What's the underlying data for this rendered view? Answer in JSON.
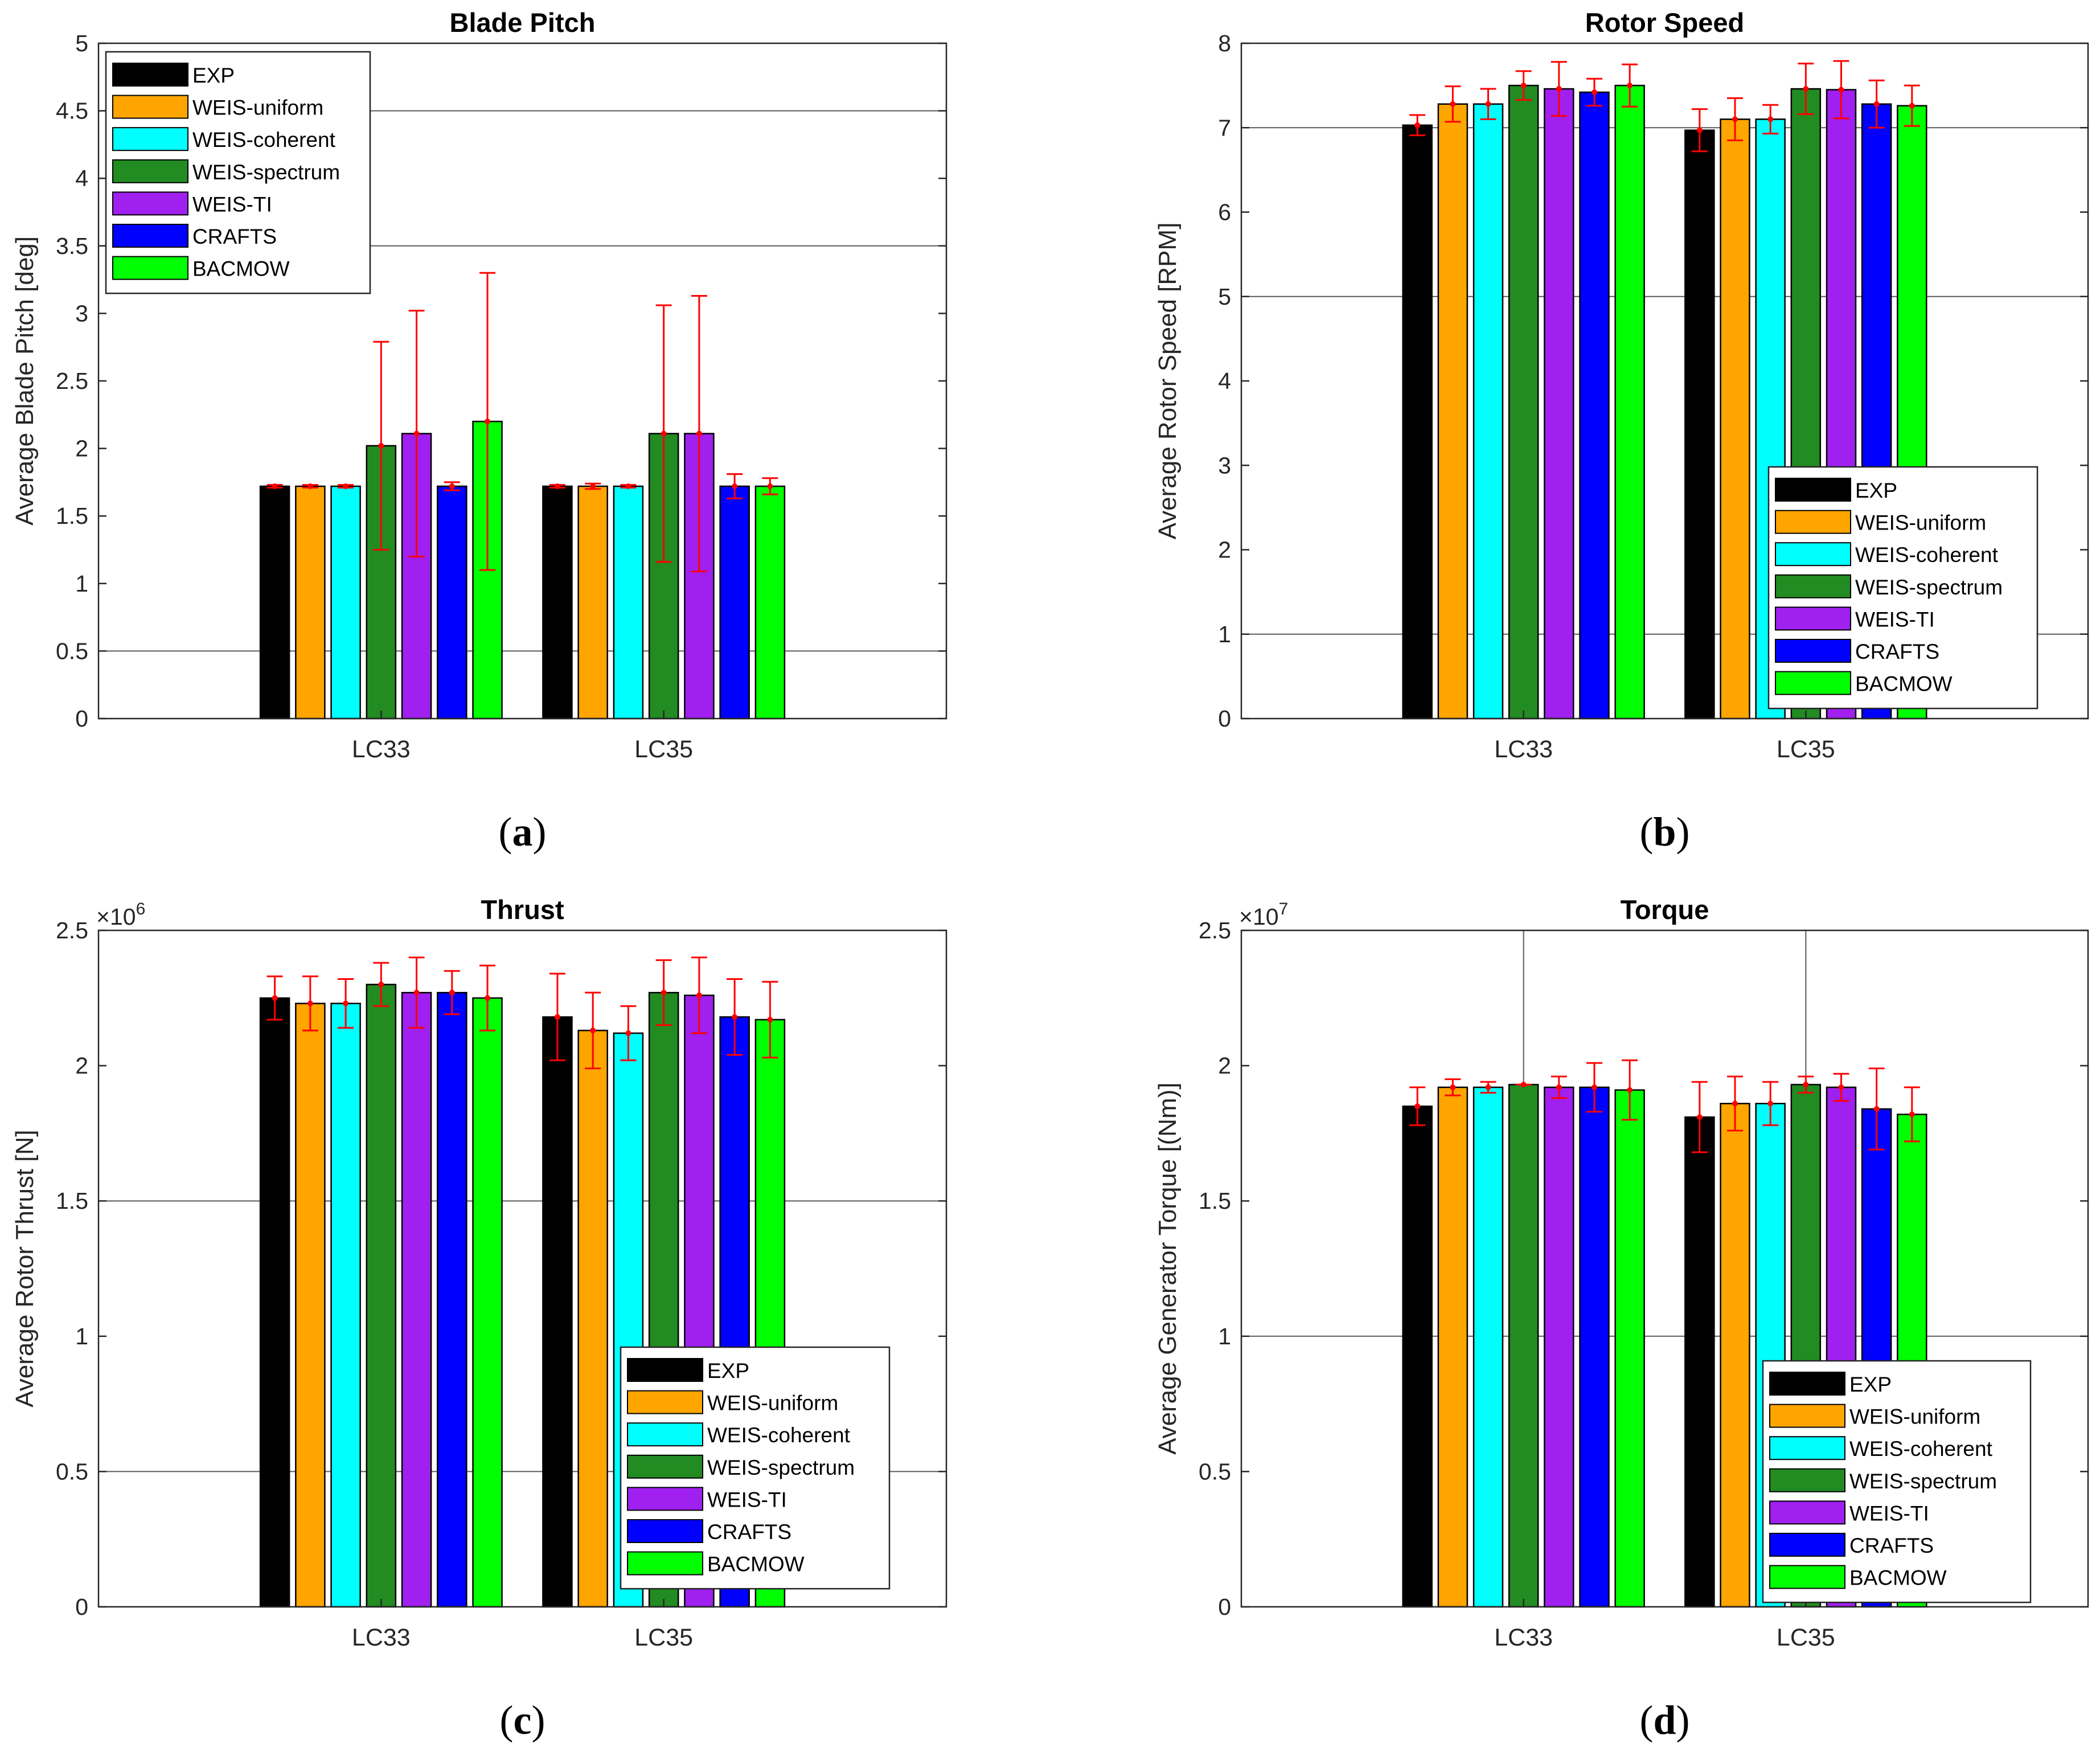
{
  "colors": {
    "EXP": "#000000",
    "WEIS-uniform": "#FFA500",
    "WEIS-coherent": "#00FFFF",
    "WEIS-spectrum": "#228B22",
    "WEIS-TI": "#A020F0",
    "CRAFTS": "#0000FF",
    "BACMOW": "#00FF00",
    "errorbar": "#FF0000"
  },
  "series_names": [
    "EXP",
    "WEIS-uniform",
    "WEIS-coherent",
    "WEIS-spectrum",
    "WEIS-TI",
    "CRAFTS",
    "BACMOW"
  ],
  "chart_data": [
    {
      "id": "a",
      "panel_label": "a",
      "type": "bar",
      "title": "Blade Pitch",
      "ylabel": "Average Blade Pitch [deg]",
      "xlabel": "",
      "categories": [
        "LC33",
        "LC35"
      ],
      "ylim": [
        0,
        5
      ],
      "yticks": [
        0,
        0.5,
        1,
        1.5,
        2,
        2.5,
        3,
        3.5,
        4,
        4.5,
        5
      ],
      "ytick_labels": [
        "0",
        "0.5",
        "1",
        "1.5",
        "2",
        "2.5",
        "3",
        "3.5",
        "4",
        "4.5",
        "5"
      ],
      "exponent": "",
      "grid_y": [
        0.5,
        3.5,
        4.5
      ],
      "grid_x": [],
      "legend_position": "top-left",
      "series": [
        {
          "name": "EXP",
          "values": [
            1.72,
            1.72
          ],
          "err": [
            0.01,
            0.01
          ]
        },
        {
          "name": "WEIS-uniform",
          "values": [
            1.72,
            1.72
          ],
          "err": [
            0.01,
            0.02
          ]
        },
        {
          "name": "WEIS-coherent",
          "values": [
            1.72,
            1.72
          ],
          "err": [
            0.01,
            0.01
          ]
        },
        {
          "name": "WEIS-spectrum",
          "values": [
            2.02,
            2.11
          ],
          "err": [
            0.77,
            0.95
          ]
        },
        {
          "name": "WEIS-TI",
          "values": [
            2.11,
            2.11
          ],
          "err": [
            0.91,
            1.02
          ]
        },
        {
          "name": "CRAFTS",
          "values": [
            1.72,
            1.72
          ],
          "err": [
            0.03,
            0.09
          ]
        },
        {
          "name": "BACMOW",
          "values": [
            2.2,
            1.72
          ],
          "err": [
            1.1,
            0.06
          ]
        }
      ]
    },
    {
      "id": "b",
      "panel_label": "b",
      "type": "bar",
      "title": "Rotor Speed",
      "ylabel": "Average Rotor Speed [RPM]",
      "xlabel": "",
      "categories": [
        "LC33",
        "LC35"
      ],
      "ylim": [
        0,
        8
      ],
      "yticks": [
        0,
        1,
        2,
        3,
        4,
        5,
        6,
        7,
        8
      ],
      "ytick_labels": [
        "0",
        "1",
        "2",
        "3",
        "4",
        "5",
        "6",
        "7",
        "8"
      ],
      "exponent": "",
      "grid_y": [
        1,
        5,
        7
      ],
      "grid_x": [],
      "legend_position": "bottom-right",
      "series": [
        {
          "name": "EXP",
          "values": [
            7.03,
            6.97
          ],
          "err": [
            0.12,
            0.25
          ]
        },
        {
          "name": "WEIS-uniform",
          "values": [
            7.28,
            7.1
          ],
          "err": [
            0.21,
            0.25
          ]
        },
        {
          "name": "WEIS-coherent",
          "values": [
            7.28,
            7.1
          ],
          "err": [
            0.18,
            0.17
          ]
        },
        {
          "name": "WEIS-spectrum",
          "values": [
            7.5,
            7.46
          ],
          "err": [
            0.17,
            0.3
          ]
        },
        {
          "name": "WEIS-TI",
          "values": [
            7.46,
            7.45
          ],
          "err": [
            0.32,
            0.34
          ]
        },
        {
          "name": "CRAFTS",
          "values": [
            7.42,
            7.28
          ],
          "err": [
            0.16,
            0.28
          ]
        },
        {
          "name": "BACMOW",
          "values": [
            7.5,
            7.26
          ],
          "err": [
            0.25,
            0.24
          ]
        }
      ]
    },
    {
      "id": "c",
      "panel_label": "c",
      "type": "bar",
      "title": "Thrust",
      "ylabel": "Average Rotor Thrust [N]",
      "xlabel": "",
      "categories": [
        "LC33",
        "LC35"
      ],
      "ylim": [
        0,
        2.5
      ],
      "yticks": [
        0,
        0.5,
        1,
        1.5,
        2,
        2.5
      ],
      "ytick_labels": [
        "0",
        "0.5",
        "1",
        "1.5",
        "2",
        "2.5"
      ],
      "exponent": "6",
      "grid_y": [
        0.5,
        1.5
      ],
      "grid_x": [],
      "legend_position": "bottom-right",
      "series": [
        {
          "name": "EXP",
          "values": [
            2.25,
            2.18
          ],
          "err": [
            0.08,
            0.16
          ]
        },
        {
          "name": "WEIS-uniform",
          "values": [
            2.23,
            2.13
          ],
          "err": [
            0.1,
            0.14
          ]
        },
        {
          "name": "WEIS-coherent",
          "values": [
            2.23,
            2.12
          ],
          "err": [
            0.09,
            0.1
          ]
        },
        {
          "name": "WEIS-spectrum",
          "values": [
            2.3,
            2.27
          ],
          "err": [
            0.08,
            0.12
          ]
        },
        {
          "name": "WEIS-TI",
          "values": [
            2.27,
            2.26
          ],
          "err": [
            0.13,
            0.14
          ]
        },
        {
          "name": "CRAFTS",
          "values": [
            2.27,
            2.18
          ],
          "err": [
            0.08,
            0.14
          ]
        },
        {
          "name": "BACMOW",
          "values": [
            2.25,
            2.17
          ],
          "err": [
            0.12,
            0.14
          ]
        }
      ]
    },
    {
      "id": "d",
      "panel_label": "d",
      "type": "bar",
      "title": "Torque",
      "ylabel": "Average Generator Torque [(Nm)]",
      "xlabel": "",
      "categories": [
        "LC33",
        "LC35"
      ],
      "ylim": [
        0,
        2.5
      ],
      "yticks": [
        0,
        0.5,
        1,
        1.5,
        2,
        2.5
      ],
      "ytick_labels": [
        "0",
        "0.5",
        "1",
        "1.5",
        "2",
        "2.5"
      ],
      "exponent": "7",
      "grid_y": [
        1.0
      ],
      "grid_x": [
        "WEIS-spectrum"
      ],
      "legend_position": "bottom-right",
      "series": [
        {
          "name": "EXP",
          "values": [
            1.85,
            1.81
          ],
          "err": [
            0.07,
            0.13
          ]
        },
        {
          "name": "WEIS-uniform",
          "values": [
            1.92,
            1.86
          ],
          "err": [
            0.03,
            0.1
          ]
        },
        {
          "name": "WEIS-coherent",
          "values": [
            1.92,
            1.86
          ],
          "err": [
            0.02,
            0.08
          ]
        },
        {
          "name": "WEIS-spectrum",
          "values": [
            1.93,
            1.93
          ],
          "err": [
            0.0,
            0.03
          ]
        },
        {
          "name": "WEIS-TI",
          "values": [
            1.92,
            1.92
          ],
          "err": [
            0.04,
            0.05
          ]
        },
        {
          "name": "CRAFTS",
          "values": [
            1.92,
            1.84
          ],
          "err": [
            0.09,
            0.15
          ]
        },
        {
          "name": "BACMOW",
          "values": [
            1.91,
            1.82
          ],
          "err": [
            0.11,
            0.1
          ]
        }
      ]
    }
  ]
}
